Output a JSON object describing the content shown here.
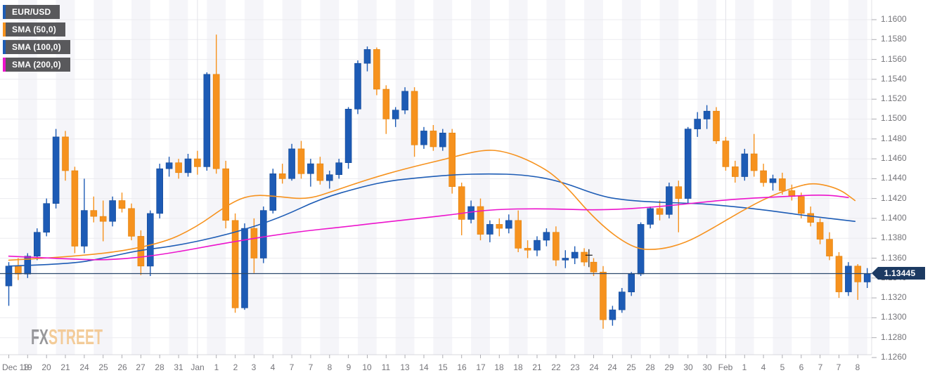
{
  "app": {
    "watermark_fx": "FX",
    "watermark_street": "STREET"
  },
  "legend": [
    {
      "label": "EUR/USD",
      "stripe_color": "#1d5cb5"
    },
    {
      "label": "SMA (50,0)",
      "stripe_color": "#f6921e"
    },
    {
      "label": "SMA (100,0)",
      "stripe_color": "#1d5cb5"
    },
    {
      "label": "SMA (200,0)",
      "stripe_color": "#ec13cc"
    }
  ],
  "price_badge": {
    "value": "1.13445",
    "color": "#1c3a62"
  },
  "chart_data": {
    "type": "candlestick",
    "pair": "EUR/USD",
    "up_color": "#1d5bb5",
    "down_color": "#f6921e",
    "price_line_color": "#2c4a6e",
    "grid_on": true,
    "legend_position": "top-left",
    "current_price": 1.13445,
    "y_range": [
      1.126,
      1.16
    ],
    "y_ticks": [
      "1.1600",
      "1.1580",
      "1.1560",
      "1.1540",
      "1.1520",
      "1.1500",
      "1.1480",
      "1.1460",
      "1.1440",
      "1.1420",
      "1.1400",
      "1.1380",
      "1.1360",
      "1.1340",
      "1.1320",
      "1.1300",
      "1.1280",
      "1.1260"
    ],
    "x_labels": [
      "Dec 18",
      "19",
      "20",
      "21",
      "24",
      "25",
      "26",
      "27",
      "28",
      "31",
      "Jan",
      "1",
      "2",
      "3",
      "4",
      "7",
      "7",
      "8",
      "9",
      "10",
      "11",
      "13",
      "14",
      "15",
      "16",
      "17",
      "18",
      "18",
      "21",
      "22",
      "23",
      "24",
      "24",
      "25",
      "28",
      "29",
      "30",
      "30",
      "Feb",
      "1",
      "4",
      "5",
      "6",
      "7",
      "7",
      "8"
    ],
    "candles": [
      [
        1.1332,
        1.1356,
        1.1312,
        1.1352
      ],
      [
        1.1352,
        1.136,
        1.1338,
        1.1344
      ],
      [
        1.1344,
        1.1365,
        1.134,
        1.1362
      ],
      [
        1.1362,
        1.139,
        1.1358,
        1.1386
      ],
      [
        1.1386,
        1.142,
        1.1382,
        1.1415
      ],
      [
        1.1415,
        1.149,
        1.141,
        1.1482
      ],
      [
        1.1482,
        1.1488,
        1.1438,
        1.1448
      ],
      [
        1.1448,
        1.1452,
        1.1365,
        1.1372
      ],
      [
        1.1372,
        1.144,
        1.1365,
        1.1408
      ],
      [
        1.1408,
        1.1422,
        1.1396,
        1.1402
      ],
      [
        1.1402,
        1.1418,
        1.1377,
        1.1397
      ],
      [
        1.1397,
        1.1422,
        1.1392,
        1.1418
      ],
      [
        1.1418,
        1.1426,
        1.1406,
        1.141
      ],
      [
        1.141,
        1.1415,
        1.1378,
        1.1382
      ],
      [
        1.1382,
        1.1388,
        1.1343,
        1.1352
      ],
      [
        1.1352,
        1.1408,
        1.1342,
        1.1405
      ],
      [
        1.1405,
        1.1455,
        1.14,
        1.145
      ],
      [
        1.145,
        1.1462,
        1.1442,
        1.1456
      ],
      [
        1.1456,
        1.146,
        1.144,
        1.1446
      ],
      [
        1.1446,
        1.1465,
        1.1442,
        1.146
      ],
      [
        1.146,
        1.1468,
        1.1444,
        1.1452
      ],
      [
        1.1452,
        1.1547,
        1.1448,
        1.1545
      ],
      [
        1.1545,
        1.1585,
        1.1445,
        1.145
      ],
      [
        1.145,
        1.1458,
        1.139,
        1.1398
      ],
      [
        1.1398,
        1.1405,
        1.1305,
        1.131
      ],
      [
        1.131,
        1.1395,
        1.1308,
        1.139
      ],
      [
        1.139,
        1.14,
        1.1345,
        1.136
      ],
      [
        1.136,
        1.1412,
        1.1355,
        1.1408
      ],
      [
        1.1408,
        1.145,
        1.1405,
        1.1445
      ],
      [
        1.1445,
        1.1455,
        1.1435,
        1.144
      ],
      [
        1.144,
        1.1475,
        1.1438,
        1.147
      ],
      [
        1.147,
        1.1478,
        1.144,
        1.1445
      ],
      [
        1.1445,
        1.146,
        1.1432,
        1.1455
      ],
      [
        1.1455,
        1.1462,
        1.1434,
        1.1438
      ],
      [
        1.1438,
        1.1448,
        1.143,
        1.1444
      ],
      [
        1.1444,
        1.146,
        1.144,
        1.1456
      ],
      [
        1.1456,
        1.1512,
        1.145,
        1.151
      ],
      [
        1.151,
        1.1559,
        1.1505,
        1.1556
      ],
      [
        1.1556,
        1.1573,
        1.1548,
        1.157
      ],
      [
        1.157,
        1.1572,
        1.1524,
        1.153
      ],
      [
        1.153,
        1.1534,
        1.1485,
        1.15
      ],
      [
        1.15,
        1.1512,
        1.1492,
        1.1509
      ],
      [
        1.1509,
        1.1532,
        1.1505,
        1.1528
      ],
      [
        1.1528,
        1.1532,
        1.1462,
        1.1474
      ],
      [
        1.1474,
        1.1492,
        1.147,
        1.1488
      ],
      [
        1.1488,
        1.1494,
        1.1468,
        1.1472
      ],
      [
        1.1472,
        1.149,
        1.1468,
        1.1486
      ],
      [
        1.1486,
        1.149,
        1.1425,
        1.1432
      ],
      [
        1.1432,
        1.1436,
        1.1383,
        1.1399
      ],
      [
        1.1399,
        1.1418,
        1.1395,
        1.1412
      ],
      [
        1.1412,
        1.142,
        1.1378,
        1.1384
      ],
      [
        1.1384,
        1.1398,
        1.1376,
        1.1394
      ],
      [
        1.1394,
        1.14,
        1.1382,
        1.139
      ],
      [
        1.139,
        1.1404,
        1.1385,
        1.1398
      ],
      [
        1.1398,
        1.1408,
        1.1366,
        1.137
      ],
      [
        1.137,
        1.1378,
        1.136,
        1.1368
      ],
      [
        1.1368,
        1.1382,
        1.1362,
        1.1378
      ],
      [
        1.1378,
        1.139,
        1.1372,
        1.1386
      ],
      [
        1.1386,
        1.1392,
        1.1352,
        1.1358
      ],
      [
        1.1358,
        1.1368,
        1.135,
        1.136
      ],
      [
        1.136,
        1.1372,
        1.1354,
        1.1366
      ],
      [
        1.1366,
        1.137,
        1.1352,
        1.1356
      ],
      [
        1.1356,
        1.136,
        1.1342,
        1.1346
      ],
      [
        1.1346,
        1.1352,
        1.1289,
        1.1298
      ],
      [
        1.1298,
        1.1312,
        1.1292,
        1.1308
      ],
      [
        1.1308,
        1.133,
        1.1305,
        1.1326
      ],
      [
        1.1326,
        1.1346,
        1.1322,
        1.1344
      ],
      [
        1.1344,
        1.1396,
        1.1342,
        1.1394
      ],
      [
        1.1394,
        1.1412,
        1.139,
        1.141
      ],
      [
        1.141,
        1.1418,
        1.1398,
        1.1404
      ],
      [
        1.1404,
        1.1436,
        1.14,
        1.1432
      ],
      [
        1.1432,
        1.1438,
        1.1386,
        1.142
      ],
      [
        1.142,
        1.1492,
        1.1415,
        1.149
      ],
      [
        1.149,
        1.1507,
        1.1482,
        1.15
      ],
      [
        1.15,
        1.1514,
        1.149,
        1.1508
      ],
      [
        1.1508,
        1.1512,
        1.1475,
        1.1478
      ],
      [
        1.1478,
        1.1482,
        1.1448,
        1.1452
      ],
      [
        1.1452,
        1.1458,
        1.1436,
        1.1442
      ],
      [
        1.1442,
        1.147,
        1.1438,
        1.1465
      ],
      [
        1.1465,
        1.1485,
        1.1442,
        1.1448
      ],
      [
        1.1448,
        1.1455,
        1.1432,
        1.1436
      ],
      [
        1.1436,
        1.1444,
        1.1428,
        1.144
      ],
      [
        1.144,
        1.1446,
        1.1424,
        1.1428
      ],
      [
        1.1428,
        1.1434,
        1.1418,
        1.1422
      ],
      [
        1.1422,
        1.1426,
        1.14,
        1.1405
      ],
      [
        1.1405,
        1.1412,
        1.1392,
        1.1396
      ],
      [
        1.1396,
        1.14,
        1.1374,
        1.1379
      ],
      [
        1.1379,
        1.1386,
        1.1358,
        1.1362
      ],
      [
        1.1362,
        1.1366,
        1.132,
        1.1326
      ],
      [
        1.1326,
        1.1356,
        1.1322,
        1.1352
      ],
      [
        1.1352,
        1.1354,
        1.1318,
        1.1336
      ],
      [
        1.1336,
        1.135,
        1.133,
        1.13445
      ]
    ],
    "sma_series": [
      {
        "name": "SMA 50",
        "color": "#f6921e",
        "points": [
          [
            0,
            1.1358
          ],
          [
            8.6,
            1.1362
          ],
          [
            16,
            1.1374
          ],
          [
            19.7,
            1.139
          ],
          [
            23.4,
            1.1415
          ],
          [
            25.7,
            1.1424
          ],
          [
            28.6,
            1.1422
          ],
          [
            31.6,
            1.1419
          ],
          [
            34.6,
            1.1428
          ],
          [
            38.3,
            1.144
          ],
          [
            42,
            1.145
          ],
          [
            46.4,
            1.146
          ],
          [
            50.1,
            1.1469
          ],
          [
            52.4,
            1.1468
          ],
          [
            55.3,
            1.1458
          ],
          [
            58.3,
            1.1441
          ],
          [
            62.4,
            1.1396
          ],
          [
            66.1,
            1.137
          ],
          [
            68.7,
            1.1368
          ],
          [
            71.7,
            1.1375
          ],
          [
            74.6,
            1.139
          ],
          [
            77.6,
            1.1407
          ],
          [
            80.6,
            1.1422
          ],
          [
            83.5,
            1.1432
          ],
          [
            85.4,
            1.1436
          ],
          [
            88,
            1.143
          ],
          [
            89.7,
            1.1418
          ]
        ]
      },
      {
        "name": "SMA 100",
        "color": "#1d5cb5",
        "points": [
          [
            0,
            1.1352
          ],
          [
            6.4,
            1.1354
          ],
          [
            10.1,
            1.136
          ],
          [
            13.8,
            1.1368
          ],
          [
            17.5,
            1.1372
          ],
          [
            23.4,
            1.1384
          ],
          [
            28.6,
            1.14
          ],
          [
            33.1,
            1.142
          ],
          [
            37.5,
            1.1432
          ],
          [
            40.5,
            1.1438
          ],
          [
            43.5,
            1.1441
          ],
          [
            47.2,
            1.1444
          ],
          [
            50.9,
            1.1445
          ],
          [
            54.6,
            1.1444
          ],
          [
            58.3,
            1.1438
          ],
          [
            62.8,
            1.1422
          ],
          [
            65.7,
            1.1418
          ],
          [
            69.4,
            1.1416
          ],
          [
            73.1,
            1.1415
          ],
          [
            76.8,
            1.1412
          ],
          [
            80.6,
            1.1408
          ],
          [
            84.3,
            1.1403
          ],
          [
            89.7,
            1.1397
          ]
        ]
      },
      {
        "name": "SMA 200",
        "color": "#ec13cc",
        "points": [
          [
            0,
            1.1362
          ],
          [
            6.4,
            1.1359
          ],
          [
            10.8,
            1.1358
          ],
          [
            16,
            1.1363
          ],
          [
            23.4,
            1.1376
          ],
          [
            30.1,
            1.1386
          ],
          [
            36,
            1.1392
          ],
          [
            40.5,
            1.1397
          ],
          [
            46.4,
            1.1403
          ],
          [
            50.9,
            1.1409
          ],
          [
            56.8,
            1.141
          ],
          [
            62.8,
            1.1408
          ],
          [
            69.4,
            1.1412
          ],
          [
            76.1,
            1.1419
          ],
          [
            82,
            1.1422
          ],
          [
            86.5,
            1.1424
          ],
          [
            89,
            1.1421
          ]
        ]
      }
    ],
    "annotation_mark": {
      "x_index": 61.5,
      "price_top": 1.1369,
      "price_bottom": 1.1351,
      "tick_price": 1.1363,
      "color": "#1a1a1a"
    }
  }
}
